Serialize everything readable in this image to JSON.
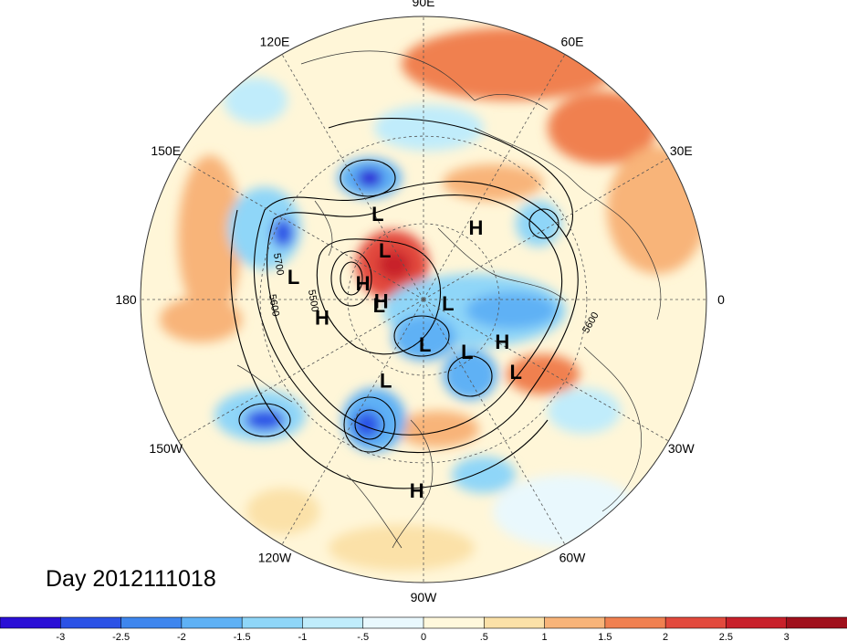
{
  "title": "Day 2012111018",
  "longitude_labels": [
    "90E",
    "60E",
    "30E",
    "0",
    "30W",
    "60W",
    "90W",
    "120W",
    "150W",
    "180",
    "150E",
    "120E"
  ],
  "pressure_centers": [
    {
      "label": "L",
      "lat": 52,
      "lon": 118
    },
    {
      "label": "H",
      "lat": 55,
      "lon": 54
    },
    {
      "label": "L",
      "lat": 65,
      "lon": 128
    },
    {
      "label": "L",
      "lat": 40,
      "lon": 170
    },
    {
      "label": "H",
      "lat": 65,
      "lon": 165
    },
    {
      "label": "H",
      "lat": 50,
      "lon": -170
    },
    {
      "label": "L",
      "lat": 72,
      "lon": -173
    },
    {
      "label": "H",
      "lat": 73,
      "lon": -178
    },
    {
      "label": "L",
      "lat": 80,
      "lon": -8
    },
    {
      "label": "L",
      "lat": 72,
      "lon": -88
    },
    {
      "label": "L",
      "lat": 63,
      "lon": -50
    },
    {
      "label": "L",
      "lat": 55,
      "lon": -115
    },
    {
      "label": "H",
      "lat": 55,
      "lon": -28
    },
    {
      "label": "L",
      "lat": 45,
      "lon": -38
    },
    {
      "label": "H",
      "lat": 22,
      "lon": -92
    }
  ],
  "contour_labels": [
    "5700",
    "5600",
    "5500",
    "5600"
  ],
  "colorbar": {
    "tick_labels": [
      "-3",
      "-2.5",
      "-2",
      "-1.5",
      "-1",
      "-.5",
      "0",
      ".5",
      "1",
      "1.5",
      "2",
      "2.5",
      "3"
    ],
    "colors": [
      "#2a0fd6",
      "#2b52e6",
      "#3e86ee",
      "#5fb1f5",
      "#8fd6f8",
      "#c0ecfb",
      "#e9f8fd",
      "#fff8dc",
      "#fbe1a8",
      "#f8b479",
      "#f08050",
      "#e24a3d",
      "#c8202a",
      "#a0101c"
    ]
  },
  "colors": {
    "border": "#333333",
    "grid": "#555555",
    "contour": "#000000"
  }
}
